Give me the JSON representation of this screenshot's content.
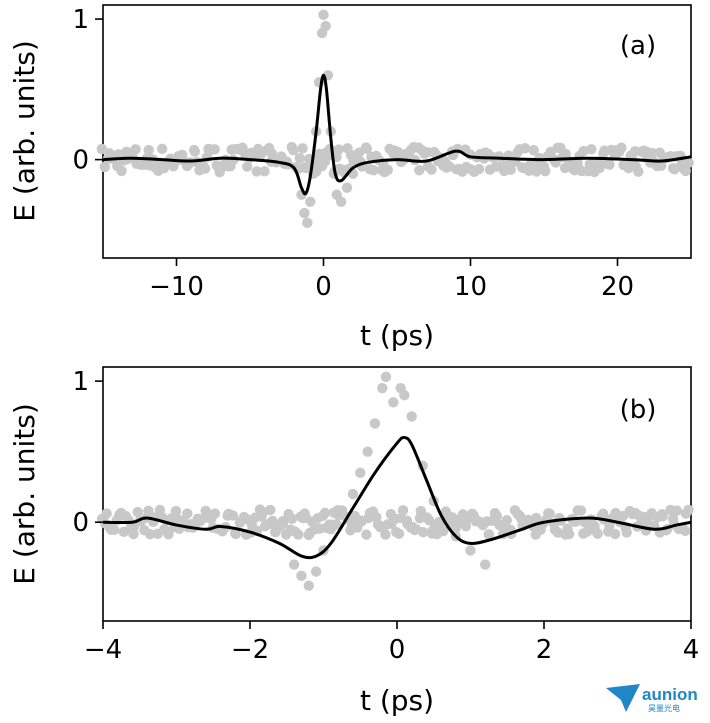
{
  "chart_data": [
    {
      "type": "scatter",
      "panel_label": "(a)",
      "xlabel": "t (ps)",
      "ylabel": "E (arb. units)",
      "xlim": [
        -15,
        25
      ],
      "ylim": [
        -0.7,
        1.1
      ],
      "xticks": [
        -10,
        0,
        10,
        20
      ],
      "yticks": [
        0,
        1
      ],
      "x_tick_labels": [
        "−10",
        "0",
        "10",
        "20"
      ],
      "y_tick_labels": [
        "0",
        "1"
      ],
      "grid": false,
      "series": [
        {
          "style": "scatter",
          "color": "#c8c8c8",
          "points": [
            [
              -1.5,
              -0.25
            ],
            [
              -1.3,
              -0.38
            ],
            [
              -1.1,
              -0.45
            ],
            [
              -0.9,
              -0.3
            ],
            [
              -0.7,
              -0.1
            ],
            [
              -0.5,
              0.2
            ],
            [
              -0.3,
              0.55
            ],
            [
              -0.1,
              0.9
            ],
            [
              0.0,
              1.03
            ],
            [
              0.15,
              0.95
            ],
            [
              0.3,
              0.6
            ],
            [
              0.5,
              0.2
            ],
            [
              0.7,
              -0.1
            ],
            [
              0.9,
              -0.25
            ],
            [
              1.2,
              -0.3
            ],
            [
              1.6,
              -0.2
            ],
            [
              2.0,
              -0.1
            ]
          ]
        },
        {
          "style": "line",
          "color": "#000000",
          "points": [
            [
              -15,
              0.0
            ],
            [
              -13,
              0.01
            ],
            [
              -11,
              0.0
            ],
            [
              -9,
              -0.01
            ],
            [
              -7,
              0.01
            ],
            [
              -5,
              0.0
            ],
            [
              -3,
              -0.02
            ],
            [
              -2,
              -0.06
            ],
            [
              -1.5,
              -0.2
            ],
            [
              -1.2,
              -0.24
            ],
            [
              -0.9,
              -0.12
            ],
            [
              -0.5,
              0.2
            ],
            [
              -0.2,
              0.5
            ],
            [
              0.0,
              0.6
            ],
            [
              0.2,
              0.5
            ],
            [
              0.5,
              0.15
            ],
            [
              0.8,
              -0.1
            ],
            [
              1.2,
              -0.15
            ],
            [
              2,
              -0.06
            ],
            [
              3,
              -0.02
            ],
            [
              5,
              0.0
            ],
            [
              7,
              -0.01
            ],
            [
              9,
              0.06
            ],
            [
              10,
              0.02
            ],
            [
              12,
              0.01
            ],
            [
              15,
              0.0
            ],
            [
              18,
              0.01
            ],
            [
              21,
              0.0
            ],
            [
              23,
              -0.01
            ],
            [
              25,
              0.02
            ]
          ]
        }
      ]
    },
    {
      "type": "scatter",
      "panel_label": "(b)",
      "xlabel": "t (ps)",
      "ylabel": "E (arb. units)",
      "xlim": [
        -4,
        4
      ],
      "ylim": [
        -0.7,
        1.1
      ],
      "xticks": [
        -4,
        -2,
        0,
        2,
        4
      ],
      "yticks": [
        0,
        1
      ],
      "x_tick_labels": [
        "−4",
        "−2",
        "0",
        "2",
        "4"
      ],
      "y_tick_labels": [
        "0",
        "1"
      ],
      "grid": false,
      "series": [
        {
          "style": "scatter",
          "color": "#c8c8c8",
          "points": [
            [
              -1.4,
              -0.3
            ],
            [
              -1.3,
              -0.38
            ],
            [
              -1.2,
              -0.45
            ],
            [
              -1.1,
              -0.35
            ],
            [
              -1.0,
              -0.2
            ],
            [
              -0.9,
              -0.05
            ],
            [
              -0.8,
              0.05
            ],
            [
              -0.6,
              0.2
            ],
            [
              -0.5,
              0.35
            ],
            [
              -0.4,
              0.5
            ],
            [
              -0.3,
              0.7
            ],
            [
              -0.2,
              0.95
            ],
            [
              -0.15,
              1.03
            ],
            [
              -0.05,
              0.85
            ],
            [
              0.05,
              0.95
            ],
            [
              0.1,
              0.9
            ],
            [
              0.2,
              0.75
            ],
            [
              0.35,
              0.4
            ],
            [
              0.5,
              0.15
            ],
            [
              0.6,
              0.0
            ],
            [
              0.8,
              -0.1
            ],
            [
              1.0,
              -0.2
            ],
            [
              1.2,
              -0.3
            ]
          ]
        },
        {
          "style": "line",
          "color": "#000000",
          "points": [
            [
              -4,
              0.0
            ],
            [
              -3.6,
              0.0
            ],
            [
              -3.4,
              0.03
            ],
            [
              -3.0,
              -0.02
            ],
            [
              -2.6,
              -0.05
            ],
            [
              -2.4,
              -0.03
            ],
            [
              -2.0,
              -0.07
            ],
            [
              -1.6,
              -0.15
            ],
            [
              -1.3,
              -0.24
            ],
            [
              -1.1,
              -0.24
            ],
            [
              -0.9,
              -0.15
            ],
            [
              -0.6,
              0.1
            ],
            [
              -0.3,
              0.35
            ],
            [
              0.0,
              0.56
            ],
            [
              0.1,
              0.6
            ],
            [
              0.2,
              0.55
            ],
            [
              0.4,
              0.3
            ],
            [
              0.6,
              0.05
            ],
            [
              0.8,
              -0.1
            ],
            [
              1.0,
              -0.15
            ],
            [
              1.3,
              -0.12
            ],
            [
              1.7,
              -0.05
            ],
            [
              2.0,
              0.0
            ],
            [
              2.6,
              0.03
            ],
            [
              3.0,
              0.0
            ],
            [
              3.5,
              -0.05
            ],
            [
              3.8,
              -0.02
            ],
            [
              4.0,
              0.0
            ]
          ]
        }
      ]
    }
  ],
  "logo": {
    "text": "aunion",
    "subtext": "昊量光电"
  }
}
